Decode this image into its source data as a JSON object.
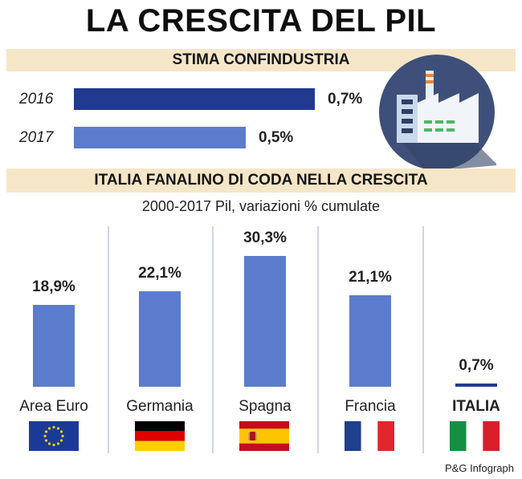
{
  "title": "LA CRESCITA DEL PIL",
  "section1": {
    "header": "STIMA CONFINDUSTRIA"
  },
  "section2": {
    "header": "ITALIA FANALINO DI CODA NELLA CRESCITA",
    "subtitle": "2000-2017 Pil, variazioni % cumulate"
  },
  "credit": "P&G Infograph",
  "icon": "factory-icon",
  "colors": {
    "dark_bar": "#213a8f",
    "light_bar": "#5b7ccc",
    "band": "#f6e6c8",
    "icon_circle": "#3e5079"
  },
  "chart_data": [
    {
      "type": "bar",
      "orientation": "horizontal",
      "categories": [
        "2016",
        "2017"
      ],
      "values": [
        0.7,
        0.5
      ],
      "value_labels": [
        "0,7%",
        "0,5%"
      ],
      "title": "STIMA CONFINDUSTRIA",
      "bar_colors": [
        "#213a8f",
        "#5b7ccc"
      ],
      "xlim": [
        0,
        0.7
      ]
    },
    {
      "type": "bar",
      "orientation": "vertical",
      "categories": [
        "Area Euro",
        "Germania",
        "Spagna",
        "Francia",
        "ITALIA"
      ],
      "values": [
        18.9,
        22.1,
        30.3,
        21.1,
        0.7
      ],
      "value_labels": [
        "18,9%",
        "22,1%",
        "30,3%",
        "21,1%",
        "0,7%"
      ],
      "title": "ITALIA FANALINO DI CODA NELLA CRESCITA",
      "subtitle": "2000-2017 Pil, variazioni % cumulate",
      "flags": [
        "eu-flag-icon",
        "germany-flag-icon",
        "spain-flag-icon",
        "france-flag-icon",
        "italy-flag-icon"
      ],
      "ylim": [
        0,
        30.3
      ]
    }
  ]
}
